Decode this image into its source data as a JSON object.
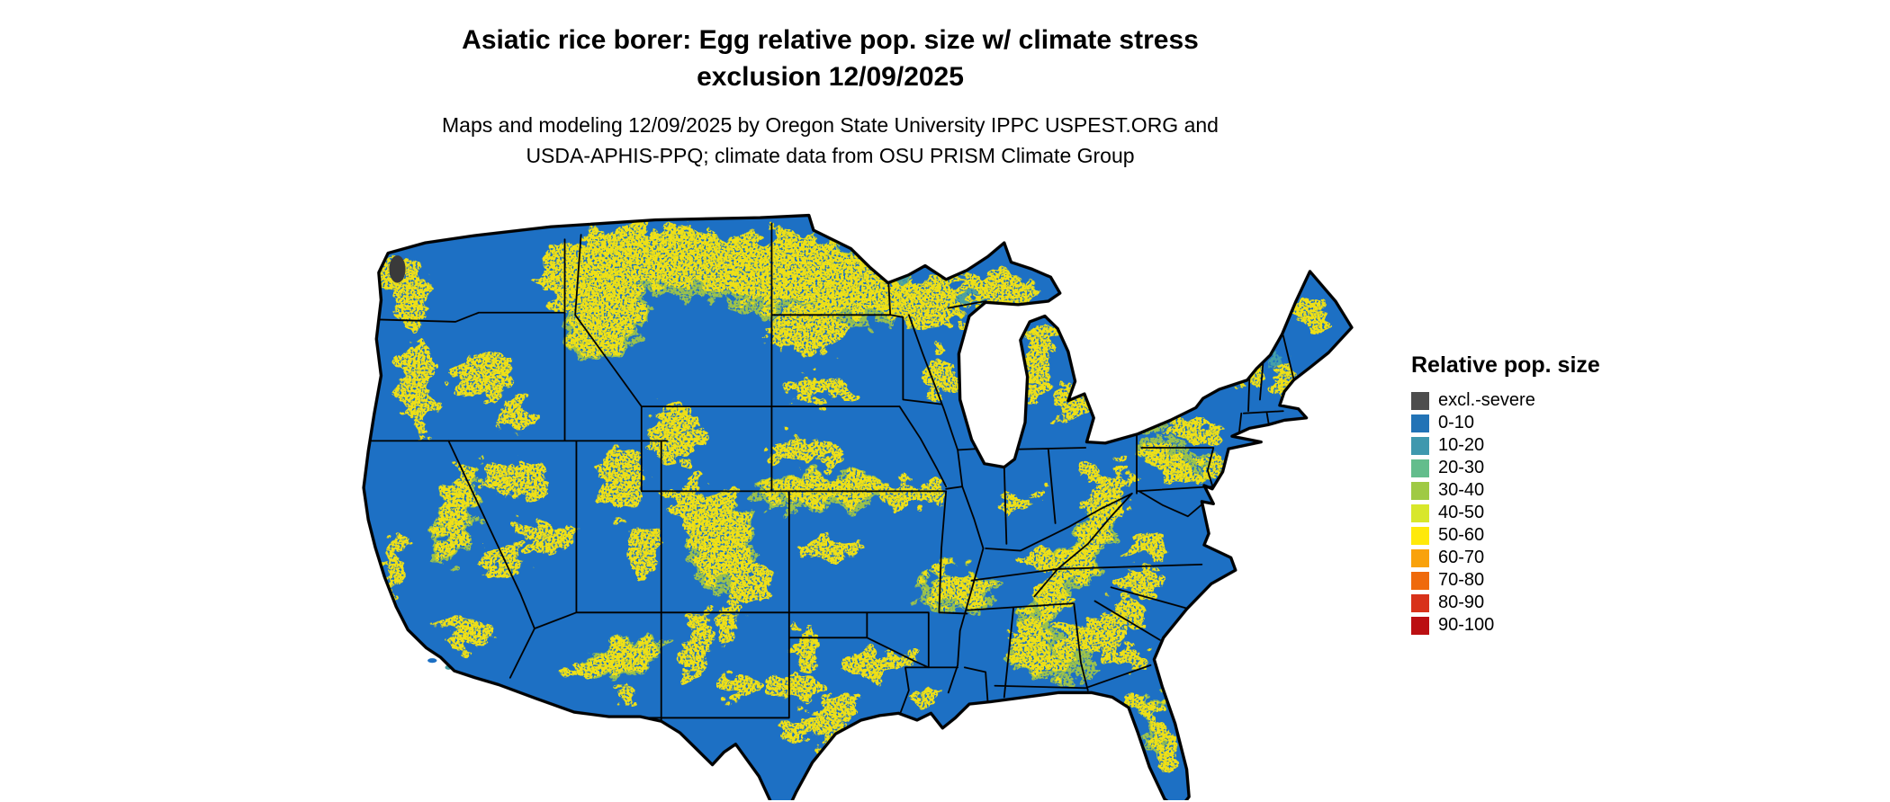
{
  "title": {
    "line1": "Asiatic rice borer: Egg relative pop. size w/ climate stress",
    "line2": "exclusion 12/09/2025"
  },
  "subtitle": {
    "line1": "Maps and modeling 12/09/2025 by Oregon State University IPPC USPEST.ORG and",
    "line2": "USDA-APHIS-PPQ; climate data from OSU PRISM Climate Group"
  },
  "map": {
    "description": "Continental US raster map of Asiatic rice borer egg relative population size",
    "base_color": "#1d70c4",
    "speckle_color": "#efe012",
    "transition_color": "#9cc24b",
    "teal_color": "#45a0a8",
    "exclusion_color": "#3a3a3a",
    "border_color": "#000000",
    "background_color": "#ffffff"
  },
  "legend": {
    "title": "Relative pop. size",
    "items": [
      {
        "label": "excl.-severe",
        "color": "#4d4d4d"
      },
      {
        "label": "0-10",
        "color": "#2273b6"
      },
      {
        "label": "10-20",
        "color": "#3f98ae"
      },
      {
        "label": "20-30",
        "color": "#63bd8c"
      },
      {
        "label": "30-40",
        "color": "#9fca44"
      },
      {
        "label": "40-50",
        "color": "#d8e72b"
      },
      {
        "label": "50-60",
        "color": "#ffe90a"
      },
      {
        "label": "60-70",
        "color": "#f9a20c"
      },
      {
        "label": "70-80",
        "color": "#ef6a0c"
      },
      {
        "label": "80-90",
        "color": "#d8321a"
      },
      {
        "label": "90-100",
        "color": "#bb0f12"
      }
    ]
  }
}
